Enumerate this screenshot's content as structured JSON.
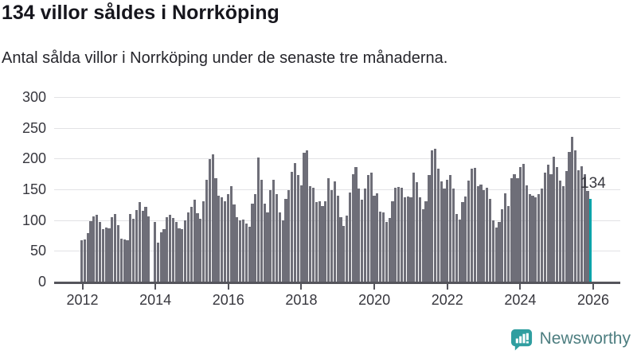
{
  "header": {
    "title": "134 villor såldes i Norrköping",
    "subtitle": "Antal sålda villor i Norrköping under de senaste tre månaderna."
  },
  "chart_data": {
    "type": "bar",
    "title": "134 villor såldes i Norrköping",
    "subtitle": "Antal sålda villor i Norrköping under de senaste tre månaderna.",
    "x_start": "2012-01",
    "x_frequency": "monthly",
    "values": [
      67,
      68,
      79,
      98,
      106,
      108,
      97,
      85,
      88,
      87,
      105,
      110,
      92,
      70,
      68,
      67,
      110,
      102,
      116,
      129,
      115,
      121,
      106,
      0,
      97,
      63,
      80,
      86,
      105,
      109,
      103,
      97,
      87,
      86,
      100,
      112,
      121,
      133,
      111,
      102,
      130,
      165,
      199,
      207,
      168,
      140,
      137,
      131,
      142,
      155,
      126,
      105,
      99,
      101,
      94,
      89,
      127,
      142,
      202,
      165,
      127,
      112,
      149,
      165,
      142,
      112,
      99,
      135,
      149,
      179,
      193,
      173,
      156,
      210,
      213,
      155,
      152,
      129,
      130,
      123,
      131,
      168,
      149,
      163,
      140,
      105,
      90,
      107,
      145,
      175,
      186,
      151,
      133,
      151,
      173,
      177,
      140,
      144,
      114,
      112,
      97,
      103,
      131,
      152,
      154,
      152,
      137,
      138,
      137,
      177,
      162,
      137,
      118,
      131,
      173,
      214,
      216,
      183,
      163,
      151,
      166,
      173,
      151,
      110,
      101,
      129,
      138,
      164,
      183,
      185,
      155,
      158,
      149,
      152,
      135,
      99,
      88,
      97,
      118,
      144,
      123,
      168,
      175,
      168,
      186,
      192,
      157,
      142,
      140,
      137,
      142,
      151,
      177,
      190,
      174,
      203,
      186,
      164,
      155,
      180,
      211,
      236,
      213,
      181,
      187,
      174,
      147,
      134
    ],
    "highlight": {
      "index": 167,
      "value": 134,
      "label": "134"
    },
    "yticks": [
      0,
      50,
      100,
      150,
      200,
      250,
      300
    ],
    "ylim": [
      0,
      300
    ],
    "xtick_labels": [
      "2012",
      "2014",
      "2016",
      "2018",
      "2020",
      "2022",
      "2024",
      "2026"
    ],
    "grid": "horizontal",
    "legend": "none",
    "bar_color": "#6e6e78",
    "highlight_color": "#00a3a9"
  },
  "footer": {
    "brand": "Newsworthy",
    "logo_icon": "bar-chart-speech-bubble-icon",
    "logo_color": "#2f9ea0",
    "text_color": "#4d7e80"
  }
}
